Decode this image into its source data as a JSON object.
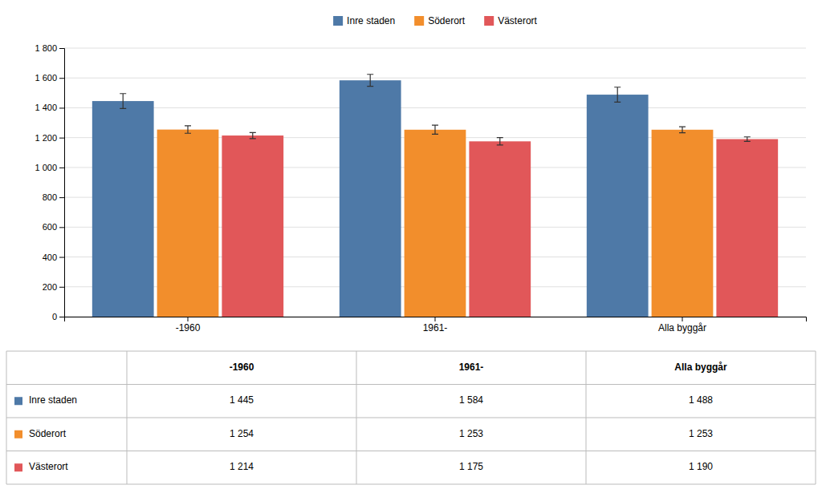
{
  "chart_data": {
    "type": "bar",
    "categories": [
      "-1960",
      "1961-",
      "Alla byggår"
    ],
    "series": [
      {
        "name": "Inre staden",
        "values": [
          1445,
          1584,
          1488
        ],
        "errors": [
          50,
          40,
          50
        ],
        "value_labels": [
          "1 445",
          "1 584",
          "1 488"
        ]
      },
      {
        "name": "Söderort",
        "values": [
          1254,
          1253,
          1253
        ],
        "errors": [
          25,
          30,
          20
        ],
        "value_labels": [
          "1 254",
          "1 253",
          "1 253"
        ]
      },
      {
        "name": "Västerort",
        "values": [
          1214,
          1175,
          1190
        ],
        "errors": [
          20,
          25,
          15
        ],
        "value_labels": [
          "1 214",
          "1 175",
          "1 190"
        ]
      }
    ],
    "ylim": [
      0,
      1800
    ],
    "yticks": [
      0,
      200,
      400,
      600,
      800,
      {
        "value": 1000,
        "label": "1 000"
      },
      {
        "value": 1200,
        "label": "1 200"
      },
      {
        "value": 1400,
        "label": "1 400"
      },
      {
        "value": 1600,
        "label": "1 600"
      },
      {
        "value": 1800,
        "label": "1 800"
      }
    ],
    "grid": true,
    "legend": "top"
  }
}
